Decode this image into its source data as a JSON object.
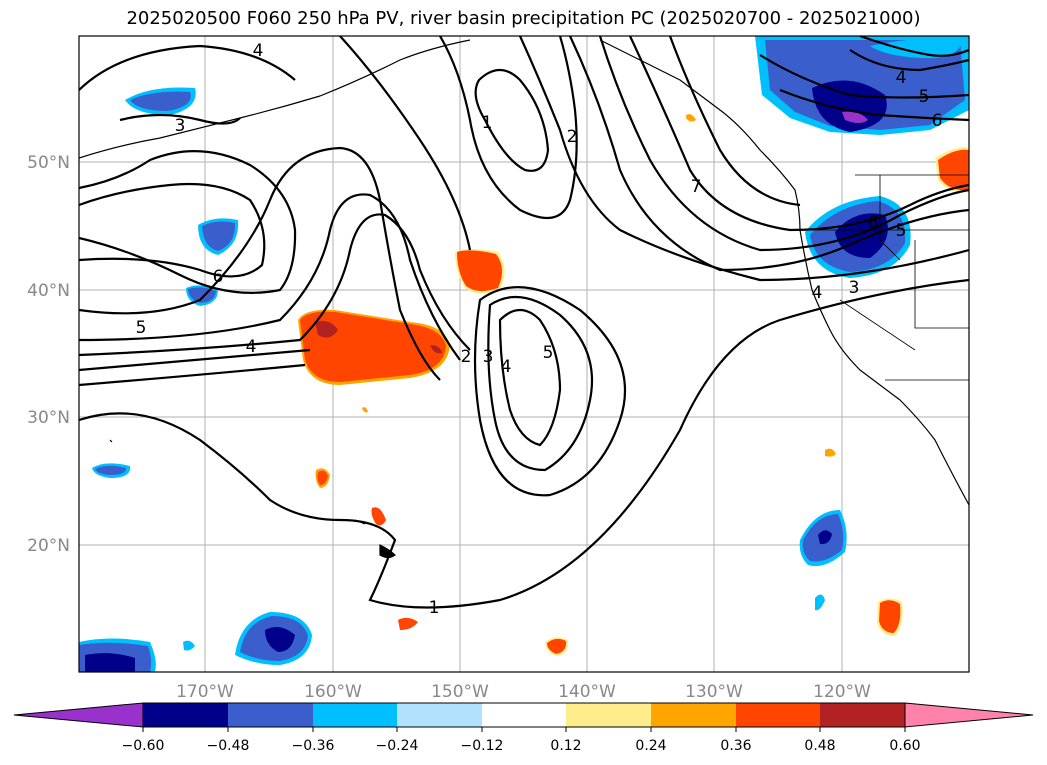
{
  "title": "2025020500 F060 250 hPa PV, river basin precipitation PC (2025020700 - 2025021000)",
  "lat_labels": [
    "50°N",
    "40°N",
    "30°N",
    "20°N"
  ],
  "lon_labels": [
    "170°W",
    "160°W",
    "150°W",
    "140°W",
    "130°W",
    "120°W"
  ],
  "contour_labels": [
    "4",
    "3",
    "6",
    "5",
    "4",
    "1",
    "2",
    "7",
    "2",
    "3",
    "4",
    "5",
    "1",
    "4",
    "5",
    "6",
    "6",
    "5",
    "4",
    "3"
  ],
  "colorbar": {
    "colors": [
      "#9932cc",
      "#00008b",
      "#3a5fcd",
      "#00bfff",
      "#b0e2ff",
      "#ffffff",
      "#ffec8b",
      "#ffa500",
      "#ff4500",
      "#b22222",
      "#ff82ab"
    ],
    "tick_labels": [
      "−0.60",
      "−0.48",
      "−0.36",
      "−0.24",
      "−0.12",
      "0.12",
      "0.24",
      "0.36",
      "0.48",
      "0.60"
    ]
  }
}
